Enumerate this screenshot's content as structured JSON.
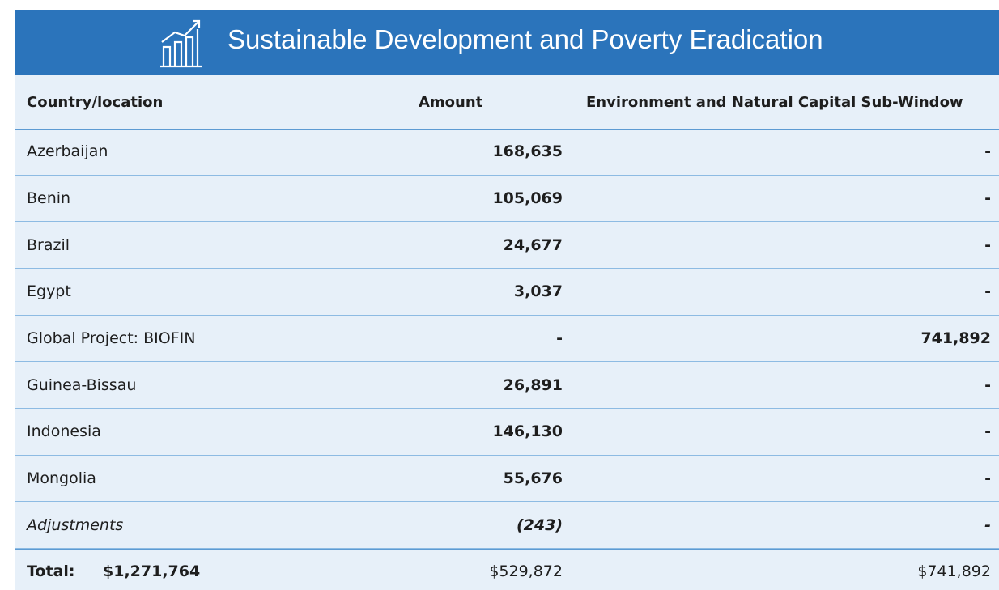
{
  "header": {
    "title": "Sustainable Development and Poverty Eradication"
  },
  "table": {
    "columns": [
      "Country/location",
      "Amount",
      "Environment and Natural Capital Sub-Window"
    ],
    "rows": [
      [
        "Azerbaijan",
        "168,635",
        "-"
      ],
      [
        "Benin",
        "105,069",
        "-"
      ],
      [
        "Brazil",
        "24,677",
        "-"
      ],
      [
        "Egypt",
        "3,037",
        "-"
      ],
      [
        "Global Project: BIOFIN",
        "-",
        "741,892"
      ],
      [
        "Guinea-Bissau",
        "26,891",
        "-"
      ],
      [
        "Indonesia",
        "146,130",
        "-"
      ],
      [
        "Mongolia",
        "55,676",
        "-"
      ],
      [
        "Adjustments",
        "(243)",
        "-"
      ]
    ],
    "total": {
      "label": "Total:",
      "value": "$1,271,764",
      "amount": "$529,872",
      "environment": "$741,892"
    }
  }
}
